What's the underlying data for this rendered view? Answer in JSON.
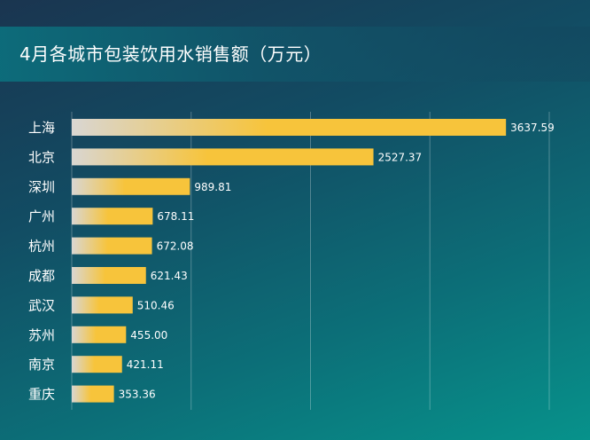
{
  "title": "4月各城市包装饮用水销售额（万元）",
  "colors": {
    "bar_start": "#d9d6d2",
    "bar_end": "#f7c43b",
    "grid": "rgba(255,255,255,0.28)"
  },
  "chart_data": {
    "type": "bar",
    "orientation": "horizontal",
    "title": "4月各城市包装饮用水销售额（万元）",
    "categories": [
      "上海",
      "北京",
      "深圳",
      "广州",
      "杭州",
      "成都",
      "武汉",
      "苏州",
      "南京",
      "重庆"
    ],
    "values": [
      3637.59,
      2527.37,
      989.81,
      678.11,
      672.08,
      621.43,
      510.46,
      455.0,
      421.11,
      353.36
    ],
    "value_labels": [
      "3637.59",
      "2527.37",
      "989.81",
      "678.11",
      "672.08",
      "621.43",
      "510.46",
      "455.00",
      "421.11",
      "353.36"
    ],
    "xlim": [
      0,
      4000
    ],
    "grid": true,
    "legend": "none"
  }
}
